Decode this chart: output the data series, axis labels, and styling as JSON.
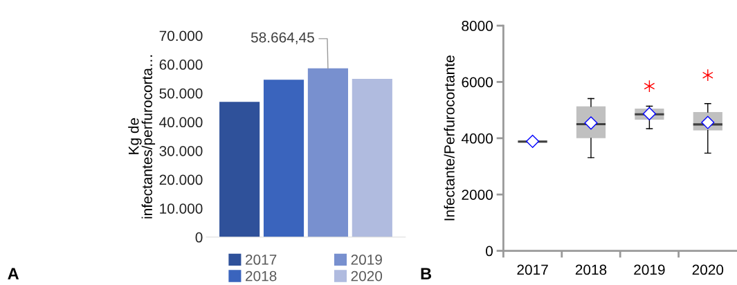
{
  "chart_data": [
    {
      "type": "bar",
      "ylabel": "Kg de\ninfectantes/perfurocorta…",
      "categories": [
        null
      ],
      "series": [
        {
          "name": "2017",
          "color": "#2f519a",
          "values": [
            47000
          ]
        },
        {
          "name": "2018",
          "color": "#3a64bd",
          "values": [
            54700
          ]
        },
        {
          "name": "2019",
          "color": "#7890cf",
          "values": [
            58664.45
          ],
          "value_labels": [
            "58.664,45"
          ]
        },
        {
          "name": "2020",
          "color": "#b0bbdf",
          "values": [
            55000
          ]
        }
      ],
      "ylim": [
        0,
        70000
      ],
      "yticks": [
        {
          "value": 0,
          "label": "0"
        },
        {
          "value": 10000,
          "label": "10.000"
        },
        {
          "value": 20000,
          "label": "20.000"
        },
        {
          "value": 30000,
          "label": "30.000"
        },
        {
          "value": 40000,
          "label": "40.000"
        },
        {
          "value": 50000,
          "label": "50.000"
        },
        {
          "value": 60000,
          "label": "60.000"
        },
        {
          "value": 70000,
          "label": "70.000"
        }
      ],
      "tick_labels": "y",
      "legend": "bottom",
      "grid": false,
      "annotations": [
        "A"
      ]
    },
    {
      "type": "box",
      "ylabel": "Infectante/Perfurocortante",
      "categories": [
        "2017",
        "2018",
        "2019",
        "2020"
      ],
      "boxes": [
        {
          "low": 3830,
          "q1": 3840,
          "median": 3880,
          "q3": 3930,
          "high": 3940,
          "mean": 3890
        },
        {
          "low": 3310,
          "q1": 4000,
          "median": 4500,
          "q3": 5130,
          "high": 5410,
          "mean": 4540
        },
        {
          "low": 4340,
          "q1": 4660,
          "median": 4850,
          "q3": 5050,
          "high": 5140,
          "mean": 4870,
          "outliers": [
            5850
          ]
        },
        {
          "low": 3470,
          "q1": 4280,
          "median": 4490,
          "q3": 4930,
          "high": 5230,
          "mean": 4560,
          "outliers": [
            6240
          ]
        }
      ],
      "ylim": [
        0,
        8000
      ],
      "yticks": [
        0,
        2000,
        4000,
        6000,
        8000
      ],
      "grid": false,
      "annotations": [
        "B"
      ]
    }
  ]
}
